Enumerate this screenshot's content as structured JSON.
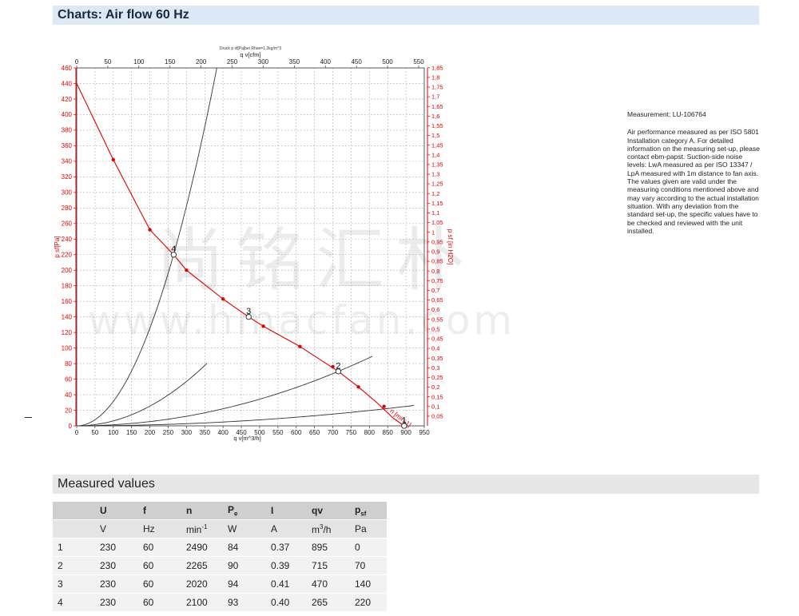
{
  "headers": {
    "charts": "Charts: Air flow 60 Hz",
    "measured": "Measured values"
  },
  "measurement_id": "Measurement: LU-106764",
  "description": "Air performance measured as per ISO 5801 Installation category A. For detailed information on the measuring set-up, please contact ebm-papst. Suction-side noise levels: LwA measured as per ISO 13347 / LpA measured with 1m distance to fan axis. The values given are valid under the measuring conditions mentioned above and may vary according to the actual installation situation. With any deviation from the standard set-up, the specific values have to be checked and reviewed with the unit installed.",
  "watermark": {
    "cn": "尚铭汇朴",
    "en": "www.hmacfan.com"
  },
  "chart_data": {
    "type": "line",
    "title": "Druck p sf[Pa]bei Rhoe=1,2kg/m^3",
    "xlabel": "q v[m^3/h]",
    "x2label": "q v[cfm]",
    "ylabel": "p sf[Pa]",
    "y2label": "p sf [in H2O]",
    "xlim": [
      0,
      950
    ],
    "x2lim": [
      0,
      559
    ],
    "ylim": [
      0,
      460
    ],
    "y2lim": [
      0,
      1.849
    ],
    "x_ticks": [
      0,
      50,
      100,
      150,
      200,
      250,
      300,
      350,
      400,
      450,
      500,
      550,
      600,
      650,
      700,
      750,
      800,
      850,
      900,
      950
    ],
    "x2_ticks": [
      0,
      50,
      100,
      150,
      200,
      250,
      300,
      350,
      400,
      450,
      500,
      550
    ],
    "y_ticks": [
      0,
      20,
      40,
      60,
      80,
      100,
      120,
      140,
      160,
      180,
      200,
      220,
      240,
      260,
      280,
      300,
      320,
      340,
      360,
      380,
      400,
      420,
      440,
      460
    ],
    "y2_ticks": [
      "0,05",
      "0,1",
      "0,15",
      "0,2",
      "0,25",
      "0,3",
      "0,35",
      "0,4",
      "0,45",
      "0,5",
      "0,55",
      "0,6",
      "0,65",
      "0,7",
      "0,75",
      "0,8",
      "0,85",
      "0,9",
      "0,95",
      "1",
      "1,05",
      "1,1",
      "1,15",
      "1,2",
      "1,25",
      "1,3",
      "1,35",
      "1,4",
      "1,45",
      "1,5",
      "1,55",
      "1,6",
      "1,65",
      "1,7",
      "1,75",
      "1,8",
      "1,85"
    ],
    "y2_tick_values": [
      0.05,
      0.1,
      0.15,
      0.2,
      0.25,
      0.3,
      0.35,
      0.4,
      0.45,
      0.5,
      0.55,
      0.6,
      0.65,
      0.7,
      0.75,
      0.8,
      0.85,
      0.9,
      0.95,
      1,
      1.05,
      1.1,
      1.15,
      1.2,
      1.25,
      1.3,
      1.35,
      1.4,
      1.45,
      1.5,
      1.55,
      1.6,
      1.65,
      1.7,
      1.75,
      1.8,
      1.85
    ],
    "grid": true,
    "fan_curve_label": "n [min-1]",
    "fan_curve": {
      "color": "#e00000",
      "x": [
        0,
        100,
        200,
        265,
        300,
        400,
        470,
        510,
        610,
        715,
        770,
        820,
        865,
        895
      ],
      "y": [
        440,
        342,
        252,
        220,
        200,
        163,
        140,
        128,
        102,
        70,
        50,
        30,
        10,
        0
      ]
    },
    "fan_curve_markers": {
      "x": [
        100,
        200,
        300,
        400,
        510,
        610,
        700,
        770,
        840
      ],
      "y": [
        342,
        252,
        200,
        163,
        128,
        102,
        76,
        50,
        25
      ]
    },
    "system_curves": [
      {
        "color": "#333333",
        "k": 3.082e-05,
        "xmax": 922
      },
      {
        "color": "#333333",
        "k": 0.00013692,
        "xmax": 808
      },
      {
        "color": "#333333",
        "k": 0.0006338,
        "xmax": 356
      },
      {
        "color": "#333333",
        "k": 0.003137,
        "xmax": 383
      }
    ],
    "operating_points": [
      {
        "label": "1",
        "x": 895,
        "y": 0
      },
      {
        "label": "2",
        "x": 715,
        "y": 70
      },
      {
        "label": "3",
        "x": 470,
        "y": 140
      },
      {
        "label": "4",
        "x": 265,
        "y": 220
      }
    ]
  },
  "table": {
    "header": [
      "",
      "U",
      "f",
      "n",
      "Pe",
      "I",
      "qv",
      "psf"
    ],
    "units": [
      "",
      "V",
      "Hz",
      "min-1",
      "W",
      "A",
      "m3/h",
      "Pa"
    ],
    "rows": [
      [
        "1",
        "230",
        "60",
        "2490",
        "84",
        "0.37",
        "895",
        "0"
      ],
      [
        "2",
        "230",
        "60",
        "2265",
        "90",
        "0.39",
        "715",
        "70"
      ],
      [
        "3",
        "230",
        "60",
        "2020",
        "94",
        "0.41",
        "470",
        "140"
      ],
      [
        "4",
        "230",
        "60",
        "2100",
        "93",
        "0.40",
        "265",
        "220"
      ]
    ]
  }
}
